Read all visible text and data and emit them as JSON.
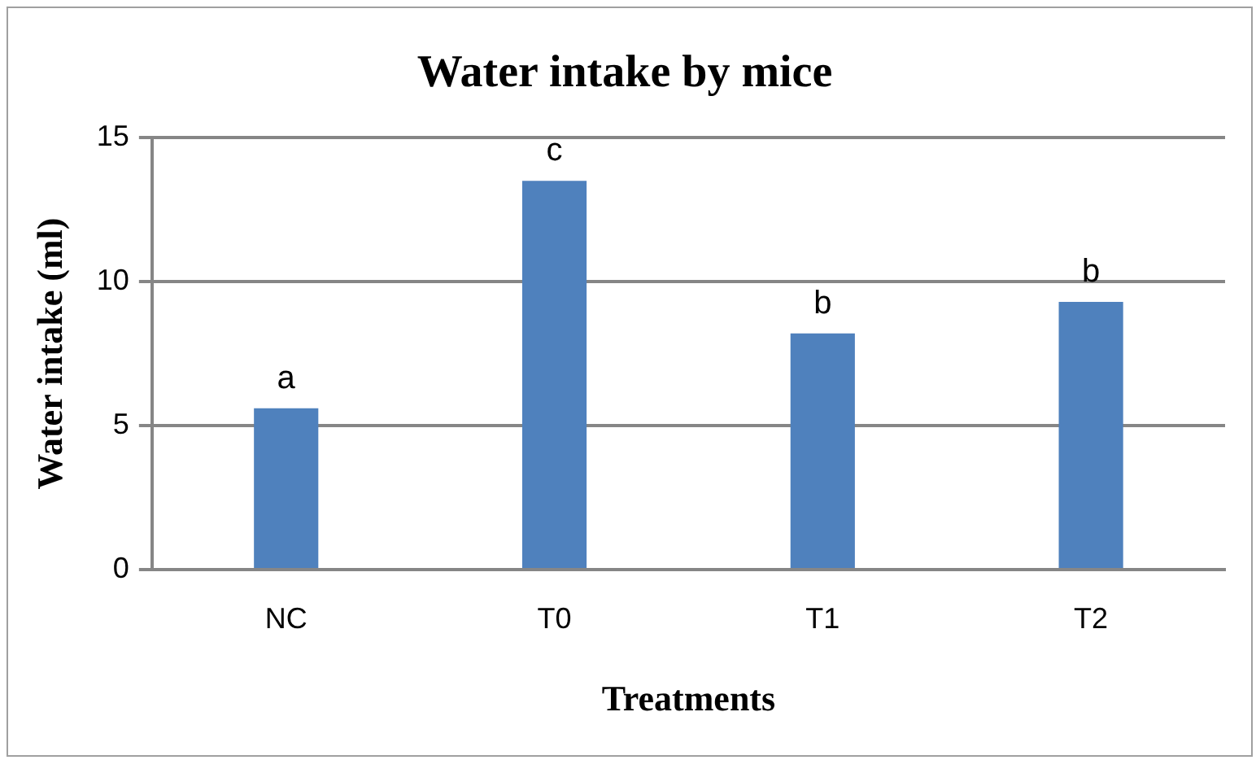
{
  "chart_data": {
    "type": "bar",
    "title": "Water intake by mice",
    "xlabel": "Treatments",
    "ylabel": "Water intake (ml)",
    "categories": [
      "NC",
      "T0",
      "T1",
      "T2"
    ],
    "values": [
      5.6,
      13.5,
      8.2,
      9.3
    ],
    "color": "#4f81bd",
    "ylim": [
      0,
      15
    ],
    "yticks": [
      0,
      5,
      10,
      15
    ],
    "grid": "y",
    "legend": false,
    "annotations": [
      {
        "text": "a",
        "x": "NC",
        "y": 5.6
      },
      {
        "text": "c",
        "x": "T0",
        "y": 13.5
      },
      {
        "text": "b",
        "x": "T1",
        "y": 8.2
      },
      {
        "text": "b",
        "x": "T2",
        "y": 9.3
      }
    ]
  }
}
